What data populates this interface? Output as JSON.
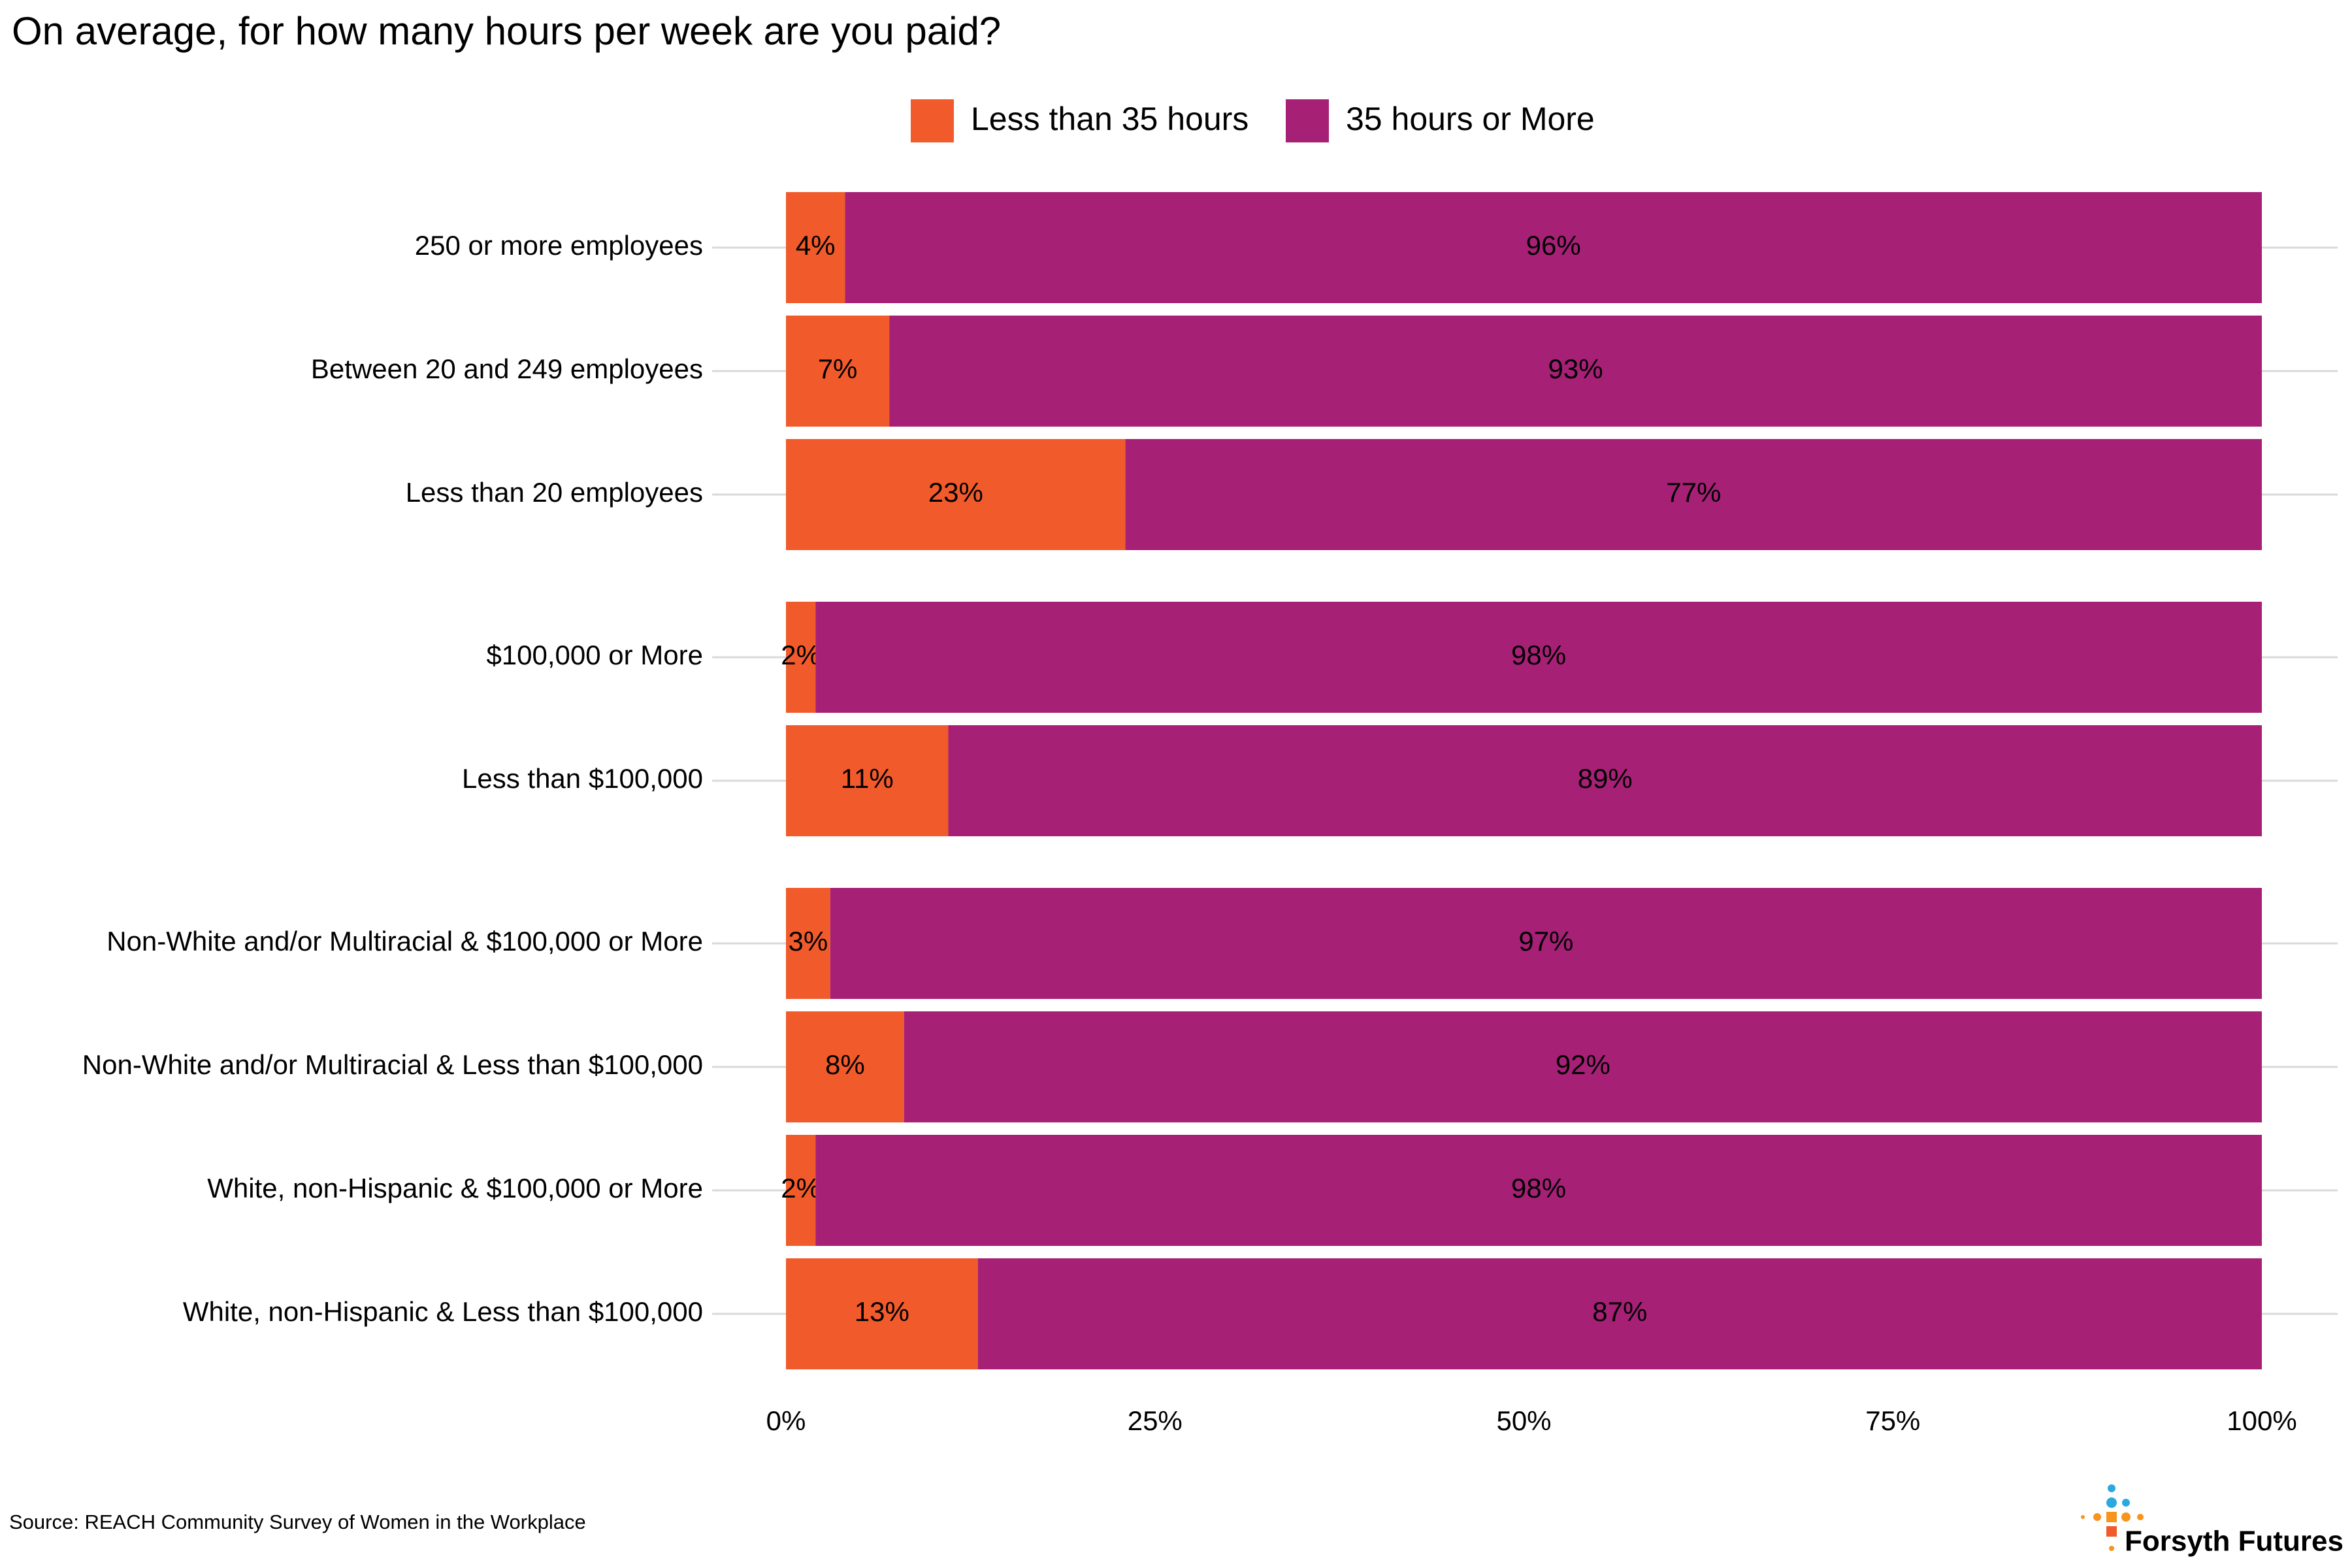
{
  "chart_data": {
    "type": "stacked-bar-horizontal",
    "title": "On average, for how many hours per week are you paid?",
    "categories": [
      "250 or more employees",
      "Between 20 and 249 employees",
      "Less than 20 employees",
      "$100,000 or More",
      "Less than $100,000",
      "Non-White and/or Multiracial & $100,000 or More",
      "Non-White and/or Multiracial & Less than $100,000",
      "White, non-Hispanic & $100,000 or More",
      "White, non-Hispanic & Less than $100,000"
    ],
    "series": [
      {
        "name": "Less than 35 hours",
        "color": "#F15A2B",
        "values": [
          4,
          7,
          23,
          2,
          11,
          3,
          8,
          2,
          13
        ],
        "value_labels": [
          "4%",
          "7%",
          "23%",
          "2%",
          "11%",
          "3%",
          "8%",
          "2%",
          "13%"
        ]
      },
      {
        "name": "35 hours or More",
        "color": "#A62076",
        "values": [
          96,
          93,
          77,
          98,
          89,
          97,
          92,
          98,
          87
        ],
        "value_labels": [
          "96%",
          "93%",
          "77%",
          "98%",
          "89%",
          "97%",
          "92%",
          "98%",
          "87%"
        ]
      }
    ],
    "xlim": [
      0,
      100
    ],
    "xticks": [
      {
        "value": 0,
        "label": "0%"
      },
      {
        "value": 25,
        "label": "25%"
      },
      {
        "value": 50,
        "label": "50%"
      },
      {
        "value": 75,
        "label": "75%"
      },
      {
        "value": 100,
        "label": "100%"
      }
    ],
    "legend": "top",
    "source": "Source: REACH Community Survey of Women in the Workplace",
    "logo": "Forsyth Futures"
  }
}
